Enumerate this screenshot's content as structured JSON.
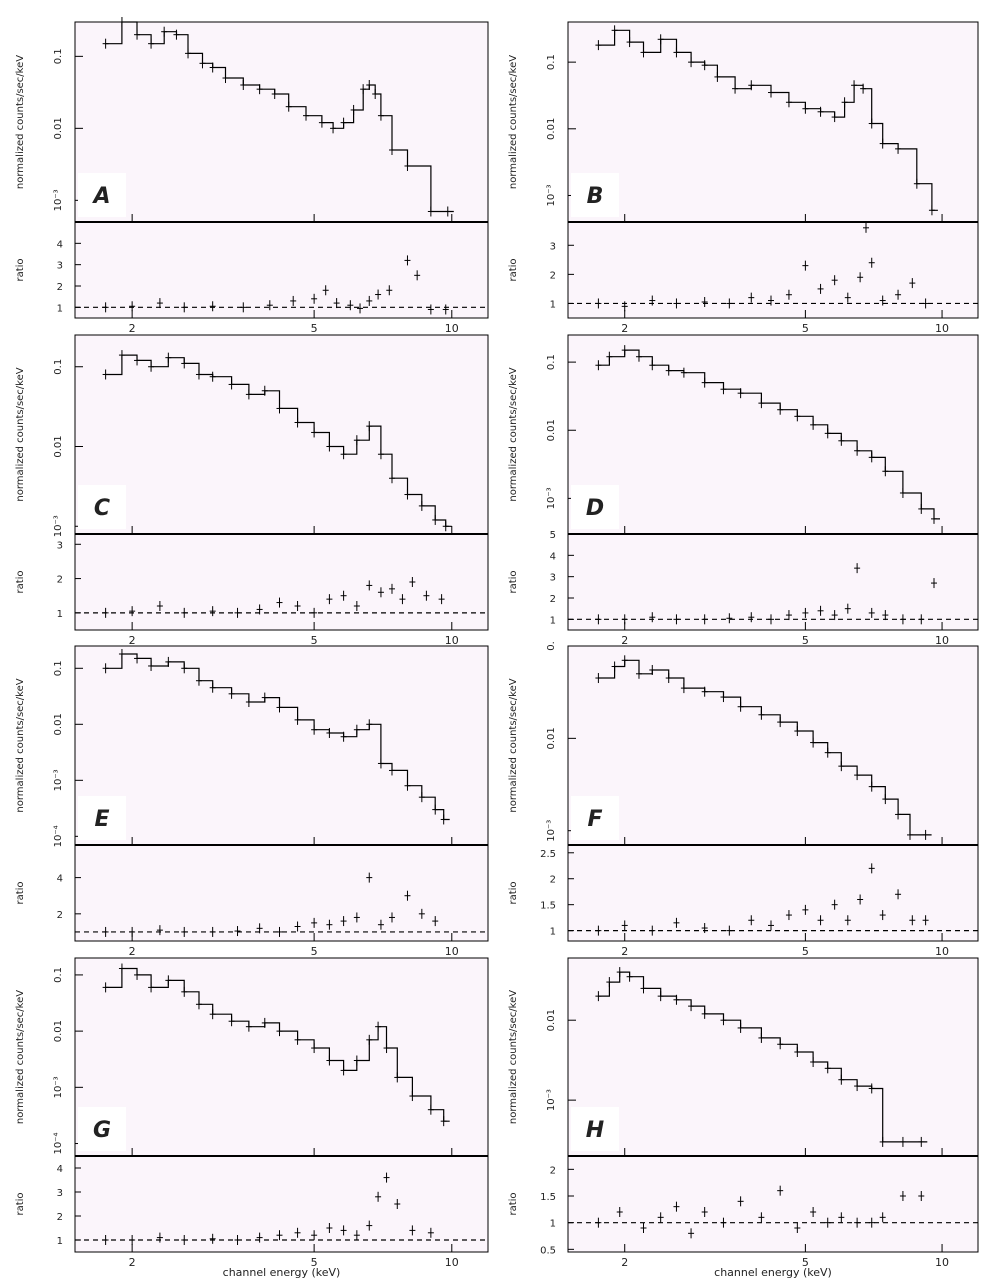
{
  "figure": {
    "ylabel_spectrum": "normalized counts/sec/keV",
    "ylabel_ratio": "ratio",
    "xlabel": "channel energy (keV)"
  },
  "colors": {
    "panel_bg": "#fbf5fb",
    "line": "#000000",
    "label_box": "#ffffff"
  },
  "chart_data": [
    {
      "panel": "A",
      "type": "line",
      "label": "A",
      "x_scale": "log",
      "xlim": [
        1.5,
        12
      ],
      "xticks": [
        "2",
        "5",
        "10"
      ],
      "y_scale": "log",
      "ylim": [
        0.0005,
        0.3
      ],
      "yticks": [
        "0.1",
        "0.01",
        "10⁻³"
      ],
      "ratio_ylim": [
        0.5,
        5
      ],
      "ratio_yticks": [
        "1",
        "2",
        "3",
        "4"
      ],
      "series": [
        {
          "x": [
            1.75,
            1.9,
            2.05,
            2.2,
            2.35,
            2.5,
            2.65,
            2.85,
            3.0,
            3.2,
            3.5,
            3.8,
            4.1,
            4.4,
            4.8,
            5.2,
            5.5,
            5.8,
            6.1,
            6.4,
            6.6,
            6.8,
            7.0,
            7.4,
            8.0,
            9.0,
            9.8
          ],
          "values": [
            0.15,
            0.3,
            0.2,
            0.15,
            0.22,
            0.2,
            0.11,
            0.08,
            0.07,
            0.05,
            0.04,
            0.035,
            0.03,
            0.02,
            0.015,
            0.012,
            0.01,
            0.012,
            0.018,
            0.035,
            0.04,
            0.03,
            0.015,
            0.005,
            0.003,
            0.0007,
            0.0007
          ]
        }
      ],
      "ratio": {
        "x": [
          1.75,
          2.0,
          2.3,
          2.6,
          3.0,
          3.5,
          4.0,
          4.5,
          5.0,
          5.3,
          5.6,
          6.0,
          6.3,
          6.6,
          6.9,
          7.3,
          8.0,
          8.4,
          9.0,
          9.7
        ],
        "values": [
          1.0,
          1.05,
          1.2,
          1.0,
          1.05,
          1.0,
          1.1,
          1.3,
          1.4,
          1.8,
          1.2,
          1.1,
          0.95,
          1.3,
          1.6,
          1.8,
          3.2,
          2.5,
          0.9,
          0.9
        ]
      }
    },
    {
      "panel": "B",
      "type": "line",
      "label": "B",
      "x_scale": "log",
      "xlim": [
        1.5,
        12
      ],
      "xticks": [
        "2",
        "5",
        "10"
      ],
      "y_scale": "log",
      "ylim": [
        0.0004,
        0.4
      ],
      "yticks": [
        "0.1",
        "0.01",
        "10⁻³"
      ],
      "ratio_ylim": [
        0.5,
        3.8
      ],
      "ratio_yticks": [
        "1",
        "2",
        "3"
      ],
      "series": [
        {
          "x": [
            1.75,
            1.9,
            2.05,
            2.2,
            2.4,
            2.6,
            2.8,
            3.0,
            3.2,
            3.5,
            3.8,
            4.2,
            4.6,
            5.0,
            5.4,
            5.8,
            6.1,
            6.4,
            6.7,
            7.0,
            7.4,
            8.0,
            8.8,
            9.5
          ],
          "values": [
            0.18,
            0.3,
            0.2,
            0.14,
            0.22,
            0.14,
            0.1,
            0.09,
            0.06,
            0.04,
            0.045,
            0.035,
            0.025,
            0.02,
            0.018,
            0.015,
            0.025,
            0.045,
            0.04,
            0.012,
            0.006,
            0.005,
            0.0015,
            0.0006
          ]
        }
      ],
      "ratio": {
        "x": [
          1.75,
          2.0,
          2.3,
          2.6,
          3.0,
          3.4,
          3.8,
          4.2,
          4.6,
          5.0,
          5.4,
          5.8,
          6.2,
          6.6,
          6.8,
          7.0,
          7.4,
          8.0,
          8.6,
          9.2
        ],
        "values": [
          1.0,
          0.9,
          1.1,
          1.0,
          1.05,
          1.0,
          1.2,
          1.1,
          1.3,
          2.3,
          1.5,
          1.8,
          1.2,
          1.9,
          3.6,
          2.4,
          1.1,
          1.3,
          1.7,
          1.0
        ]
      }
    },
    {
      "panel": "C",
      "type": "line",
      "label": "C",
      "x_scale": "log",
      "xlim": [
        1.5,
        12
      ],
      "xticks": [
        "2",
        "5",
        "10"
      ],
      "y_scale": "log",
      "ylim": [
        0.0008,
        0.25
      ],
      "yticks": [
        "0.1",
        "0.01",
        "10⁻³"
      ],
      "ratio_ylim": [
        0.5,
        3.3
      ],
      "ratio_yticks": [
        "1",
        "2",
        "3"
      ],
      "series": [
        {
          "x": [
            1.75,
            1.9,
            2.05,
            2.2,
            2.4,
            2.6,
            2.8,
            3.0,
            3.3,
            3.6,
            3.9,
            4.2,
            4.6,
            5.0,
            5.4,
            5.8,
            6.2,
            6.6,
            7.0,
            7.4,
            8.0,
            8.6,
            9.2,
            9.7
          ],
          "values": [
            0.08,
            0.14,
            0.12,
            0.1,
            0.13,
            0.11,
            0.08,
            0.075,
            0.06,
            0.045,
            0.05,
            0.03,
            0.02,
            0.015,
            0.01,
            0.008,
            0.012,
            0.018,
            0.008,
            0.004,
            0.0025,
            0.0018,
            0.0012,
            0.001
          ]
        }
      ],
      "ratio": {
        "x": [
          1.75,
          2.0,
          2.3,
          2.6,
          3.0,
          3.4,
          3.8,
          4.2,
          4.6,
          5.0,
          5.4,
          5.8,
          6.2,
          6.6,
          7.0,
          7.4,
          7.8,
          8.2,
          8.8,
          9.5
        ],
        "values": [
          1.0,
          1.05,
          1.2,
          1.0,
          1.05,
          1.0,
          1.1,
          1.3,
          1.2,
          1.0,
          1.4,
          1.5,
          1.2,
          1.8,
          1.6,
          1.7,
          1.4,
          1.9,
          1.5,
          1.4
        ]
      }
    },
    {
      "panel": "D",
      "type": "line",
      "label": "D",
      "x_scale": "log",
      "xlim": [
        1.5,
        12
      ],
      "xticks": [
        "2",
        "5",
        "10"
      ],
      "y_scale": "log",
      "ylim": [
        0.0003,
        0.25
      ],
      "yticks": [
        "0.1",
        "0.01",
        "10⁻³"
      ],
      "ratio_ylim": [
        0.5,
        5
      ],
      "ratio_yticks": [
        "1",
        "2",
        "3",
        "4",
        "5"
      ],
      "series": [
        {
          "x": [
            1.75,
            1.85,
            2.0,
            2.15,
            2.3,
            2.5,
            2.7,
            3.0,
            3.3,
            3.6,
            4.0,
            4.4,
            4.8,
            5.2,
            5.6,
            6.0,
            6.5,
            7.0,
            7.5,
            8.2,
            9.0,
            9.6
          ],
          "values": [
            0.09,
            0.12,
            0.15,
            0.12,
            0.09,
            0.075,
            0.07,
            0.05,
            0.04,
            0.035,
            0.025,
            0.02,
            0.016,
            0.012,
            0.009,
            0.007,
            0.005,
            0.004,
            0.0025,
            0.0012,
            0.0007,
            0.0005
          ]
        }
      ],
      "ratio": {
        "x": [
          1.75,
          2.0,
          2.3,
          2.6,
          3.0,
          3.4,
          3.8,
          4.2,
          4.6,
          5.0,
          5.4,
          5.8,
          6.2,
          6.5,
          7.0,
          7.5,
          8.2,
          9.0,
          9.6
        ],
        "values": [
          1.0,
          1.0,
          1.1,
          1.0,
          1.0,
          1.05,
          1.1,
          1.0,
          1.2,
          1.3,
          1.4,
          1.2,
          1.5,
          3.4,
          1.3,
          1.2,
          1.0,
          1.0,
          2.7
        ]
      }
    },
    {
      "panel": "E",
      "type": "line",
      "label": "E",
      "x_scale": "log",
      "xlim": [
        1.5,
        12
      ],
      "xticks": [
        "2",
        "5",
        "10"
      ],
      "y_scale": "log",
      "ylim": [
        7e-05,
        0.25
      ],
      "yticks": [
        "0.1",
        "0.01",
        "10⁻³",
        "10⁻⁴"
      ],
      "ratio_ylim": [
        0.5,
        5.8
      ],
      "ratio_yticks": [
        "2",
        "4"
      ],
      "series": [
        {
          "x": [
            1.75,
            1.9,
            2.05,
            2.2,
            2.4,
            2.6,
            2.8,
            3.0,
            3.3,
            3.6,
            3.9,
            4.2,
            4.6,
            5.0,
            5.4,
            5.8,
            6.2,
            6.6,
            7.0,
            7.4,
            8.0,
            8.6,
            9.2,
            9.6
          ],
          "values": [
            0.1,
            0.18,
            0.15,
            0.11,
            0.13,
            0.1,
            0.06,
            0.045,
            0.035,
            0.025,
            0.03,
            0.02,
            0.012,
            0.008,
            0.007,
            0.006,
            0.008,
            0.01,
            0.002,
            0.0015,
            0.0008,
            0.0005,
            0.0003,
            0.0002
          ]
        }
      ],
      "ratio": {
        "x": [
          1.75,
          2.0,
          2.3,
          2.6,
          3.0,
          3.4,
          3.8,
          4.2,
          4.6,
          5.0,
          5.4,
          5.8,
          6.2,
          6.6,
          7.0,
          7.4,
          8.0,
          8.6,
          9.2
        ],
        "values": [
          1.0,
          1.0,
          1.1,
          1.0,
          1.0,
          1.05,
          1.2,
          1.0,
          1.3,
          1.5,
          1.4,
          1.6,
          1.8,
          4.0,
          1.4,
          1.8,
          3.0,
          2.0,
          1.6
        ]
      }
    },
    {
      "panel": "F",
      "type": "line",
      "label": "F",
      "x_scale": "log",
      "xlim": [
        1.5,
        12
      ],
      "xticks": [
        "2",
        "5",
        "10"
      ],
      "y_scale": "log",
      "ylim": [
        0.0007,
        0.1
      ],
      "yticks": [
        "0.",
        "0.01",
        "10⁻³"
      ],
      "ratio_ylim": [
        0.8,
        2.65
      ],
      "ratio_yticks": [
        "1",
        "1.5",
        "2",
        "2.5"
      ],
      "series": [
        {
          "x": [
            1.75,
            1.9,
            2.0,
            2.15,
            2.3,
            2.5,
            2.7,
            3.0,
            3.3,
            3.6,
            4.0,
            4.4,
            4.8,
            5.2,
            5.6,
            6.0,
            6.5,
            7.0,
            7.5,
            8.0,
            8.5,
            9.2
          ],
          "values": [
            0.045,
            0.06,
            0.07,
            0.05,
            0.055,
            0.045,
            0.035,
            0.032,
            0.028,
            0.022,
            0.018,
            0.015,
            0.012,
            0.009,
            0.007,
            0.005,
            0.004,
            0.003,
            0.0022,
            0.0015,
            0.0009,
            0.0009
          ]
        }
      ],
      "ratio": {
        "x": [
          1.75,
          2.0,
          2.3,
          2.6,
          3.0,
          3.4,
          3.8,
          4.2,
          4.6,
          5.0,
          5.4,
          5.8,
          6.2,
          6.6,
          7.0,
          7.4,
          8.0,
          8.6,
          9.2
        ],
        "values": [
          1.0,
          1.1,
          1.0,
          1.15,
          1.05,
          1.0,
          1.2,
          1.1,
          1.3,
          1.4,
          1.2,
          1.5,
          1.2,
          1.6,
          2.2,
          1.3,
          1.7,
          1.2,
          1.2
        ]
      }
    },
    {
      "panel": "G",
      "type": "line",
      "label": "G",
      "x_scale": "log",
      "xlim": [
        1.5,
        12
      ],
      "xticks": [
        "2",
        "5",
        "10"
      ],
      "y_scale": "log",
      "ylim": [
        6e-05,
        0.2
      ],
      "yticks": [
        "0.1",
        "0.01",
        "10⁻³",
        "10⁻⁴"
      ],
      "ratio_ylim": [
        0.5,
        4.5
      ],
      "ratio_yticks": [
        "1",
        "2",
        "3",
        "4"
      ],
      "series": [
        {
          "x": [
            1.75,
            1.9,
            2.05,
            2.2,
            2.4,
            2.6,
            2.8,
            3.0,
            3.3,
            3.6,
            3.9,
            4.2,
            4.6,
            5.0,
            5.4,
            5.8,
            6.2,
            6.6,
            6.9,
            7.2,
            7.6,
            8.2,
            9.0,
            9.6
          ],
          "values": [
            0.06,
            0.13,
            0.1,
            0.06,
            0.08,
            0.05,
            0.03,
            0.02,
            0.015,
            0.012,
            0.014,
            0.01,
            0.007,
            0.005,
            0.003,
            0.002,
            0.003,
            0.007,
            0.012,
            0.005,
            0.0015,
            0.0007,
            0.0004,
            0.00025
          ]
        }
      ],
      "ratio": {
        "x": [
          1.75,
          2.0,
          2.3,
          2.6,
          3.0,
          3.4,
          3.8,
          4.2,
          4.6,
          5.0,
          5.4,
          5.8,
          6.2,
          6.6,
          6.9,
          7.2,
          7.6,
          8.2,
          9.0
        ],
        "values": [
          1.0,
          1.0,
          1.1,
          1.0,
          1.05,
          1.0,
          1.1,
          1.2,
          1.3,
          1.2,
          1.5,
          1.4,
          1.2,
          1.6,
          2.8,
          3.6,
          2.5,
          1.4,
          1.3
        ]
      }
    },
    {
      "panel": "H",
      "type": "line",
      "label": "H",
      "x_scale": "log",
      "xlim": [
        1.5,
        12
      ],
      "xticks": [
        "2",
        "5",
        "10"
      ],
      "y_scale": "log",
      "ylim": [
        0.0002,
        0.06
      ],
      "yticks": [
        "0.01",
        "10⁻³"
      ],
      "ratio_ylim": [
        0.45,
        2.25
      ],
      "ratio_yticks": [
        "0.5",
        "1",
        "1.5",
        "2"
      ],
      "series": [
        {
          "x": [
            1.75,
            1.85,
            1.95,
            2.05,
            2.2,
            2.4,
            2.6,
            2.8,
            3.0,
            3.3,
            3.6,
            4.0,
            4.4,
            4.8,
            5.2,
            5.6,
            6.0,
            6.5,
            7.0,
            7.4,
            8.2,
            9.0
          ],
          "values": [
            0.02,
            0.03,
            0.04,
            0.035,
            0.025,
            0.02,
            0.018,
            0.015,
            0.012,
            0.01,
            0.008,
            0.006,
            0.005,
            0.004,
            0.003,
            0.0025,
            0.0018,
            0.0015,
            0.0014,
            0.0003,
            0.0003,
            0.0003
          ]
        }
      ],
      "ratio": {
        "x": [
          1.75,
          1.95,
          2.2,
          2.4,
          2.6,
          2.8,
          3.0,
          3.3,
          3.6,
          4.0,
          4.4,
          4.8,
          5.2,
          5.6,
          6.0,
          6.5,
          7.0,
          7.4,
          8.2,
          9.0
        ],
        "values": [
          1.0,
          1.2,
          0.9,
          1.1,
          1.3,
          0.8,
          1.2,
          1.0,
          1.4,
          1.1,
          1.6,
          0.9,
          1.2,
          1.0,
          1.1,
          1.0,
          1.0,
          1.1,
          1.5,
          1.5
        ]
      }
    }
  ]
}
